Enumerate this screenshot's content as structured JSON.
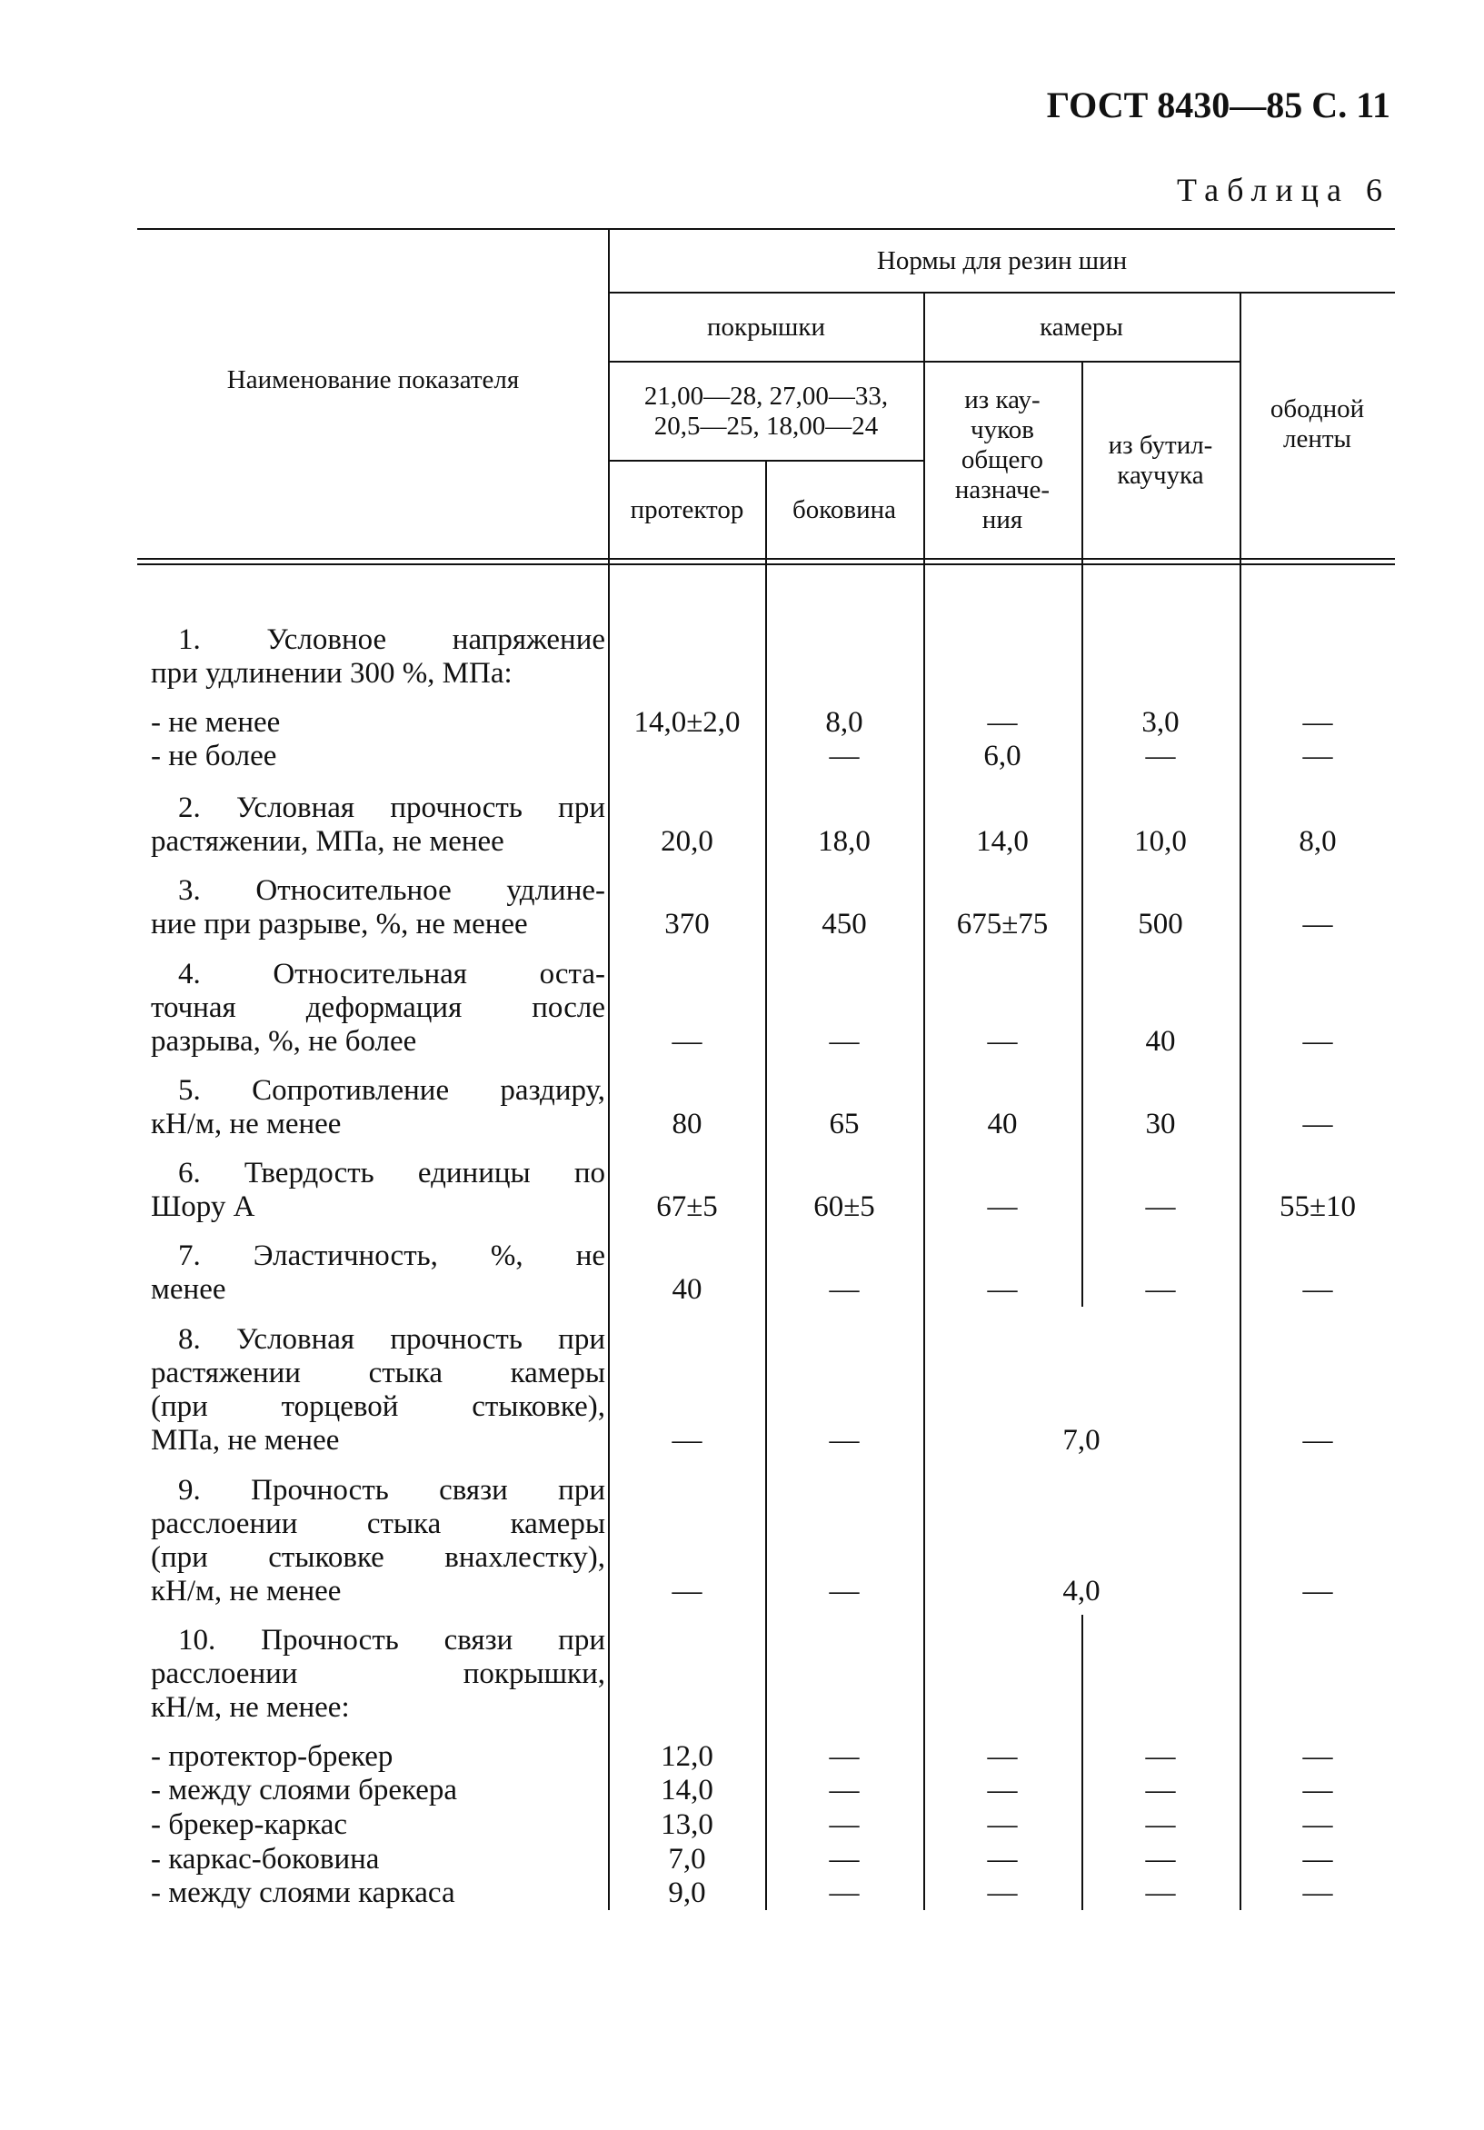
{
  "header": {
    "doc_ref": "ГОСТ 8430—85 С. 11",
    "table_label": "Таблица 6"
  },
  "table_head": {
    "name_col": "Наименование показателя",
    "norms": "Нормы для резин шин",
    "tyres": "покрышки",
    "tubes": "камеры",
    "rim_tape": [
      "ободной",
      "ленты"
    ],
    "tyre_sizes": [
      "21,00—28, 27,00—33,",
      "20,5—25, 18,00—24"
    ],
    "tube_general": [
      "из кау-",
      "чуков",
      "общего",
      "назначе-",
      "ния"
    ],
    "tube_butyl": [
      "из бутил-",
      "каучука"
    ],
    "tread": "протектор",
    "sidewall": "боковина"
  },
  "rows": [
    {
      "lines": [
        "1. Условное напряжение",
        "при удлинении 300 %, МПа:"
      ],
      "values": null
    },
    {
      "lines": [
        "- не менее"
      ],
      "sub": true,
      "values": [
        "14,0±2,0",
        "8,0",
        "—",
        "3,0",
        "—"
      ]
    },
    {
      "lines": [
        "- не более"
      ],
      "sub": true,
      "values": [
        "",
        "—",
        "6,0",
        "—",
        "—"
      ]
    },
    {
      "lines": [
        "2. Условная прочность при",
        "растяжении, МПа, не менее"
      ],
      "values": [
        "20,0",
        "18,0",
        "14,0",
        "10,0",
        "8,0"
      ]
    },
    {
      "lines": [
        "3. Относительное удлине-",
        "ние при разрыве, %, не менее"
      ],
      "values": [
        "370",
        "450",
        "675±75",
        "500",
        "—"
      ]
    },
    {
      "lines": [
        "4. Относительная оста-",
        "точная деформация после",
        "разрыва, %, не более"
      ],
      "values": [
        "—",
        "—",
        "—",
        "40",
        "—"
      ]
    },
    {
      "lines": [
        "5. Сопротивление раздиру,",
        "кН/м, не менее"
      ],
      "values": [
        "80",
        "65",
        "40",
        "30",
        "—"
      ]
    },
    {
      "lines": [
        "6. Твердость единицы по",
        "Шору А"
      ],
      "values": [
        "67±5",
        "60±5",
        "—",
        "—",
        "55±10"
      ]
    },
    {
      "lines": [
        "7. Эластичность, %, не",
        "менее"
      ],
      "values": [
        "40",
        "—",
        "—",
        "—",
        "—"
      ]
    },
    {
      "lines": [
        "8. Условная прочность при",
        "растяжении стыка камеры",
        "(при торцевой стыковке),",
        "МПа, не менее"
      ],
      "values": [
        "—",
        "—",
        "7,0",
        "—"
      ],
      "merged_tubes": true
    },
    {
      "lines": [
        "9. Прочность связи при",
        "расслоении стыка камеры",
        "(при стыковке внахлестку),",
        "кН/м, не менее"
      ],
      "values": [
        "—",
        "—",
        "4,0",
        "—"
      ],
      "merged_tubes": true
    },
    {
      "lines": [
        "10. Прочность связи при",
        "расслоении покрышки,",
        "кН/м, не менее:"
      ],
      "values": null
    },
    {
      "lines": [
        "- протектор-брекер"
      ],
      "sub": true,
      "values": [
        "12,0",
        "—",
        "—",
        "—",
        "—"
      ]
    },
    {
      "lines": [
        "- между слоями брекера"
      ],
      "sub": true,
      "values": [
        "14,0",
        "—",
        "—",
        "—",
        "—"
      ]
    },
    {
      "lines": [
        "- брекер-каркас"
      ],
      "sub": true,
      "values": [
        "13,0",
        "—",
        "—",
        "—",
        "—"
      ]
    },
    {
      "lines": [
        "- каркас-боковина"
      ],
      "sub": true,
      "values": [
        "7,0",
        "—",
        "—",
        "—",
        "—"
      ]
    },
    {
      "lines": [
        "- между слоями каркаса"
      ],
      "sub": true,
      "values": [
        "9,0",
        "—",
        "—",
        "—",
        "—"
      ]
    }
  ]
}
